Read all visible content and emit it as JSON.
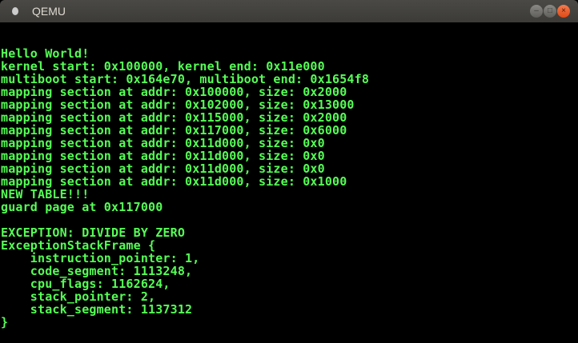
{
  "window": {
    "title": "QEMU",
    "buttons": {
      "minimize": "–",
      "maximize": "□",
      "close": "×"
    }
  },
  "console": {
    "color": "#55ff55",
    "lines": [
      "Hello World!",
      "kernel start: 0x100000, kernel end: 0x11e000",
      "multiboot start: 0x164e70, multiboot end: 0x1654f8",
      "mapping section at addr: 0x100000, size: 0x2000",
      "mapping section at addr: 0x102000, size: 0x13000",
      "mapping section at addr: 0x115000, size: 0x2000",
      "mapping section at addr: 0x117000, size: 0x6000",
      "mapping section at addr: 0x11d000, size: 0x0",
      "mapping section at addr: 0x11d000, size: 0x0",
      "mapping section at addr: 0x11d000, size: 0x0",
      "mapping section at addr: 0x11d000, size: 0x1000",
      "NEW TABLE!!!",
      "guard page at 0x117000",
      "",
      "EXCEPTION: DIVIDE BY ZERO",
      "ExceptionStackFrame {",
      "    instruction_pointer: 1,",
      "    code_segment: 1113248,",
      "    cpu_flags: 1162624,",
      "    stack_pointer: 2,",
      "    stack_segment: 1137312",
      "}"
    ]
  }
}
